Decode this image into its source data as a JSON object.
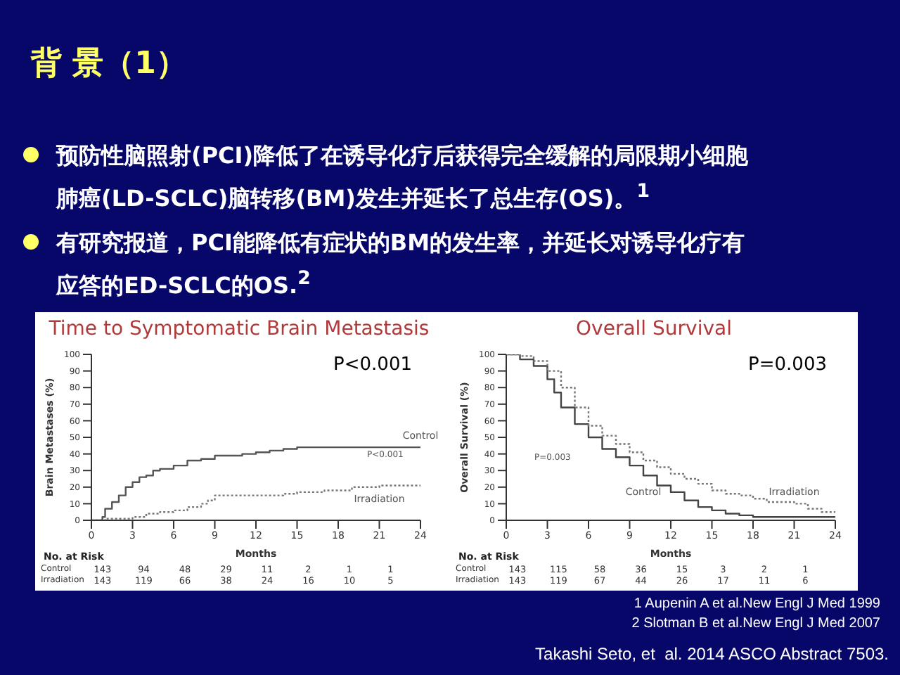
{
  "chart_data": [
    {
      "type": "other",
      "title": "背 景（1）",
      "annotations": [
        "预防性脑照射(PCI)降低了在诱导化疗后获得完全缓解的局限期小细胞肺癌(LD-SCLC)脑转移(BM)发生并延长了总生存(OS)。$^{1}$",
        "有研究报道，PCI能降低有症状的BM的发生率，并延长对诱导化疗有应答的ED-SCLC的OS.$^{2}$",
        "1 Aupenin A et al.New Engl J Med 1999",
        "2 Slotman B et al.New Engl J Med 2007",
        "Takashi Seto, et  al. 2014 ASCO Abstract 7503."
      ]
    },
    {
      "type": "step",
      "title": "Time to Symptomatic Brain Metastasis",
      "xlabel": "Months",
      "ylabel": "Brain Metastases (%)",
      "xlim": [
        0,
        24
      ],
      "xticks": [
        0,
        3,
        6,
        9,
        12,
        15,
        18,
        21,
        24
      ],
      "ylim": [
        0,
        100
      ],
      "yticks": [
        0,
        10,
        20,
        30,
        40,
        50,
        60,
        70,
        80,
        90,
        100
      ],
      "series": [
        {
          "name": "Control",
          "color": "#555555",
          "line_style": "solid",
          "x": [
            0,
            0.8,
            1,
            1.5,
            2,
            2.5,
            3,
            3.5,
            4,
            4.5,
            5,
            6,
            7,
            8,
            9,
            10,
            11,
            12,
            13,
            14,
            15,
            24
          ],
          "values": [
            0,
            2,
            7,
            11,
            15,
            20,
            23,
            26,
            27,
            30,
            31,
            33,
            36,
            37,
            39,
            39,
            40,
            41,
            42,
            43,
            44,
            44
          ]
        },
        {
          "name": "Irradiation",
          "color": "#777777",
          "line_style": "dotted",
          "x": [
            0,
            1,
            3,
            4,
            5,
            6,
            7,
            8,
            8.5,
            9,
            14,
            15,
            17,
            19,
            21,
            24
          ],
          "values": [
            0,
            1,
            2,
            4,
            5,
            6,
            8,
            10,
            12,
            15,
            16,
            17,
            18,
            20,
            21,
            21
          ]
        }
      ],
      "annotations": [
        "P<0.001",
        "P<0.001",
        "No. at Risk",
        "Control 143 94 48 29 11 2 1 1",
        "Irradiation 143 119 66 38 24 16 10 5"
      ]
    },
    {
      "type": "step",
      "title": "Overall Survival",
      "xlabel": "Months",
      "ylabel": "Overall Survival (%)",
      "xlim": [
        0,
        24
      ],
      "xticks": [
        0,
        3,
        6,
        9,
        12,
        15,
        18,
        21,
        24
      ],
      "ylim": [
        0,
        100
      ],
      "yticks": [
        0,
        10,
        20,
        30,
        40,
        50,
        60,
        70,
        80,
        90,
        100
      ],
      "series": [
        {
          "name": "Control",
          "color": "#444444",
          "line_style": "solid",
          "x": [
            0,
            1,
            2,
            3,
            3.5,
            4,
            5,
            6,
            7,
            8,
            9,
            10,
            11,
            12,
            13,
            14,
            15,
            16,
            17,
            18,
            24
          ],
          "values": [
            100,
            97,
            93,
            85,
            77,
            68,
            58,
            50,
            43,
            38,
            33,
            27,
            21,
            17,
            12,
            8,
            6,
            4,
            3,
            2,
            2
          ]
        },
        {
          "name": "Irradiation",
          "color": "#777777",
          "line_style": "dotted",
          "x": [
            0,
            1,
            2,
            3,
            4,
            5,
            6,
            7,
            8,
            9,
            10,
            11,
            12,
            13,
            14,
            15,
            16,
            17,
            18,
            19,
            21,
            22,
            23,
            24
          ],
          "values": [
            100,
            99,
            96,
            90,
            80,
            68,
            57,
            51,
            46,
            41,
            36,
            32,
            28,
            25,
            22,
            18,
            16,
            15,
            13,
            11,
            10,
            7,
            5,
            5
          ]
        }
      ],
      "annotations": [
        "P=0.003",
        "P=0.003",
        "No. at Risk",
        "Control 143 115 58 36 15 3 2 1",
        "Irradiation 143 119 67 44 26 17 11 6"
      ]
    }
  ]
}
